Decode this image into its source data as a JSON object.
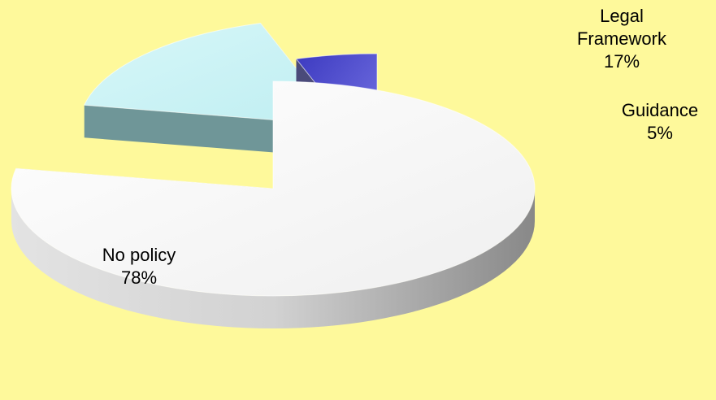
{
  "chart_data": {
    "type": "pie",
    "title": "",
    "slices": [
      {
        "label": "No policy",
        "value": 78,
        "value_label": "78%",
        "color": "#F4F4F4"
      },
      {
        "label": "Legal Framework",
        "value": 17,
        "value_label": "17%",
        "color": "#CFF4F6"
      },
      {
        "label": "Guidance",
        "value": 5,
        "value_label": "5%",
        "color": "#4A47C8"
      }
    ],
    "style": "3d-exploded",
    "legend": "none",
    "data_labels": "outside-and-inside"
  },
  "labels": {
    "slice0": {
      "name": "No policy",
      "pct": "78%"
    },
    "slice1": {
      "name_line1": "Legal",
      "name_line2": "Framework",
      "pct": "17%"
    },
    "slice2": {
      "name": "Guidance",
      "pct": "5%"
    }
  }
}
